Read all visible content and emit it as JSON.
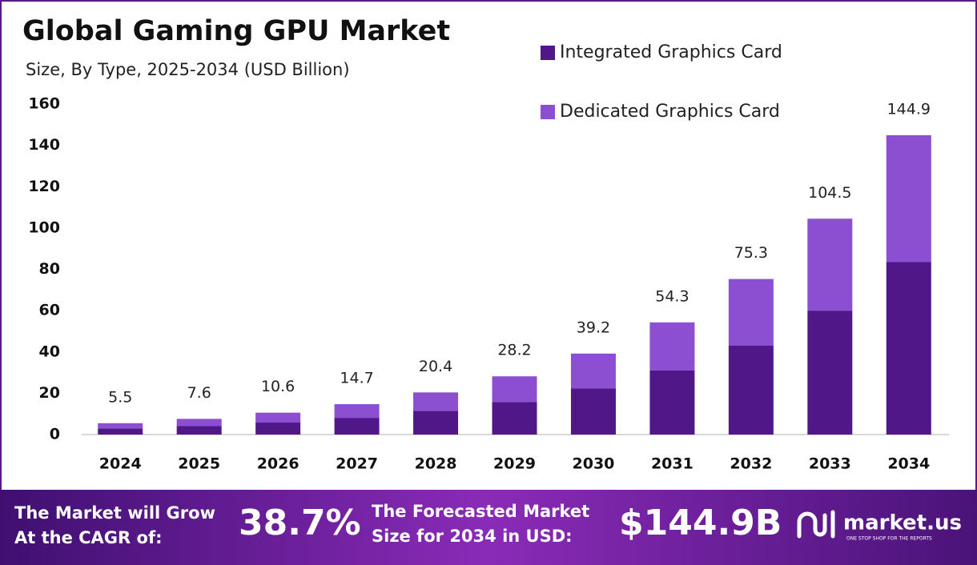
{
  "chart_data": {
    "type": "stacked-bar",
    "title": "Global Gaming GPU Market",
    "subtitle": "Size, By Type, 2025-2034 (USD Billion)",
    "categories": [
      "2024",
      "2025",
      "2026",
      "2027",
      "2028",
      "2029",
      "2030",
      "2031",
      "2032",
      "2033",
      "2034"
    ],
    "series": [
      {
        "name": "Integrated Graphics Card",
        "color": "#4f1787",
        "values": [
          3.0,
          4.2,
          5.8,
          8.1,
          11.5,
          15.8,
          22.3,
          31.0,
          43.0,
          60.0,
          83.5
        ]
      },
      {
        "name": "Dedicated Graphics Card",
        "color": "#8c4fd2",
        "values": [
          2.5,
          3.4,
          4.8,
          6.6,
          8.9,
          12.4,
          16.9,
          23.3,
          32.3,
          44.5,
          61.4
        ]
      }
    ],
    "totals": [
      5.5,
      7.6,
      10.6,
      14.7,
      20.4,
      28.2,
      39.2,
      54.3,
      75.3,
      104.5,
      144.9
    ],
    "ylim": [
      0,
      160
    ],
    "yticks": [
      0,
      20,
      40,
      60,
      80,
      100,
      120,
      140,
      160
    ],
    "grid": false,
    "legend": "top-right"
  },
  "footer": {
    "cagr_text_1": "The Market will Grow",
    "cagr_text_2": "At the CAGR of:",
    "cagr": "38.7%",
    "forecast_text_1": "The Forecasted Market",
    "forecast_text_2": "Size for 2034 in USD:",
    "forecast": "$144.9B",
    "brand": "market.us",
    "tagline": "ONE STOP SHOP FOR THE REPORTS"
  }
}
